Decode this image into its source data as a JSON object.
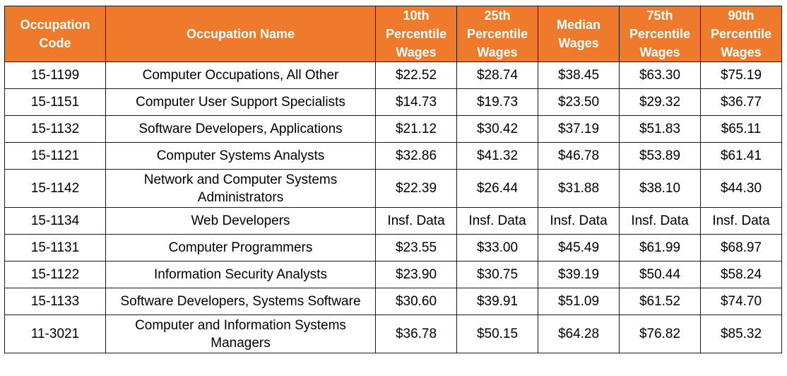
{
  "chart_data": {
    "type": "table",
    "columns": [
      "Occupation\nCode",
      "Occupation Name",
      "10th\nPercentile\nWages",
      "25th\nPercentile\nWages",
      "Median\nWages",
      "75th\nPercentile\nWages",
      "90th\nPercentile\nWages"
    ],
    "rows": [
      [
        "15-1199",
        "Computer Occupations, All Other",
        "$22.52",
        "$28.74",
        "$38.45",
        "$63.30",
        "$75.19"
      ],
      [
        "15-1151",
        "Computer User Support Specialists",
        "$14.73",
        "$19.73",
        "$23.50",
        "$29.32",
        "$36.77"
      ],
      [
        "15-1132",
        "Software Developers, Applications",
        "$21.12",
        "$30.42",
        "$37.19",
        "$51.83",
        "$65.11"
      ],
      [
        "15-1121",
        "Computer Systems Analysts",
        "$32.86",
        "$41.32",
        "$46.78",
        "$53.89",
        "$61.41"
      ],
      [
        "15-1142",
        "Network and Computer Systems Administrators",
        "$22.39",
        "$26.44",
        "$31.88",
        "$38.10",
        "$44.30"
      ],
      [
        "15-1134",
        "Web Developers",
        "Insf. Data",
        "Insf. Data",
        "Insf. Data",
        "Insf. Data",
        "Insf. Data"
      ],
      [
        "15-1131",
        "Computer Programmers",
        "$23.55",
        "$33.00",
        "$45.49",
        "$61.99",
        "$68.97"
      ],
      [
        "15-1122",
        "Information Security Analysts",
        "$23.90",
        "$30.75",
        "$39.19",
        "$50.44",
        "$58.24"
      ],
      [
        "15-1133",
        "Software Developers, Systems Software",
        "$30.60",
        "$39.91",
        "$51.09",
        "$61.52",
        "$74.70"
      ],
      [
        "11-3021",
        "Computer and Information Systems Managers",
        "$36.78",
        "$50.15",
        "$64.28",
        "$76.82",
        "$85.32"
      ]
    ],
    "colors": {
      "header_bg": "#ef7a2b",
      "header_text": "#ffffff",
      "border": "#1a1a1a"
    }
  }
}
